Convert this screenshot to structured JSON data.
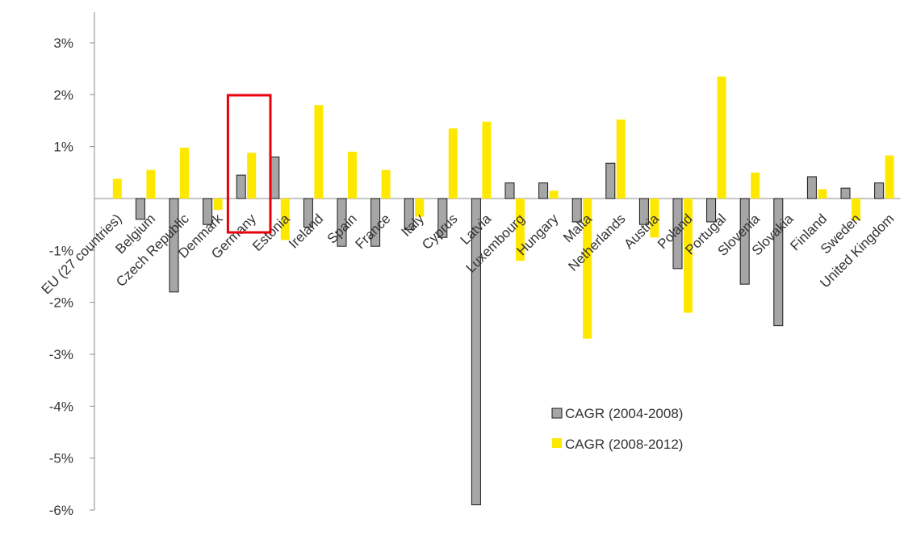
{
  "chart_data": {
    "type": "bar",
    "categories": [
      "EU (27 countries)",
      "Belgium",
      "Czech Republic",
      "Denmark",
      "Germany",
      "Estonia",
      "Ireland",
      "Spain",
      "France",
      "Italy",
      "Cyprus",
      "Latvia",
      "Luxembourg",
      "Hungary",
      "Malta",
      "Netherlands",
      "Austria",
      "Poland",
      "Portugal",
      "Slovenia",
      "Slovakia",
      "Finland",
      "Sweden",
      "United Kingdom"
    ],
    "series": [
      {
        "name": "CAGR (2004-2008)",
        "color": "#a6a6a6",
        "values": [
          0.0,
          -0.4,
          -1.8,
          -0.5,
          0.45,
          0.8,
          -0.55,
          -0.92,
          -0.92,
          -0.6,
          -0.75,
          -5.9,
          0.3,
          0.3,
          -0.45,
          0.68,
          -0.5,
          -1.35,
          -0.45,
          -1.65,
          -2.45,
          0.42,
          0.2,
          0.3
        ]
      },
      {
        "name": "CAGR (2008-2012)",
        "color": "#ffe800",
        "values": [
          0.38,
          0.55,
          0.98,
          -0.22,
          0.88,
          -0.8,
          1.8,
          0.9,
          0.55,
          -0.35,
          1.35,
          1.48,
          -1.2,
          0.15,
          -2.7,
          1.52,
          -0.75,
          -2.2,
          2.35,
          0.5,
          0.0,
          0.18,
          -0.42,
          0.83
        ]
      }
    ],
    "ylim": [
      -6,
      3.5
    ],
    "yticks": [
      {
        "value": 3,
        "label": "3%"
      },
      {
        "value": 2,
        "label": "2%"
      },
      {
        "value": 1,
        "label": "1%"
      },
      {
        "value": -1,
        "label": "-1%"
      },
      {
        "value": -2,
        "label": "-2%"
      },
      {
        "value": -3,
        "label": "-3%"
      },
      {
        "value": -4,
        "label": "-4%"
      },
      {
        "value": -5,
        "label": "-5%"
      },
      {
        "value": -6,
        "label": "-6%"
      }
    ],
    "highlight": {
      "category": "Germany",
      "color": "#e8000b"
    },
    "legend_position": "lower-right",
    "title": "",
    "xlabel": "",
    "ylabel": "",
    "grid": false
  }
}
